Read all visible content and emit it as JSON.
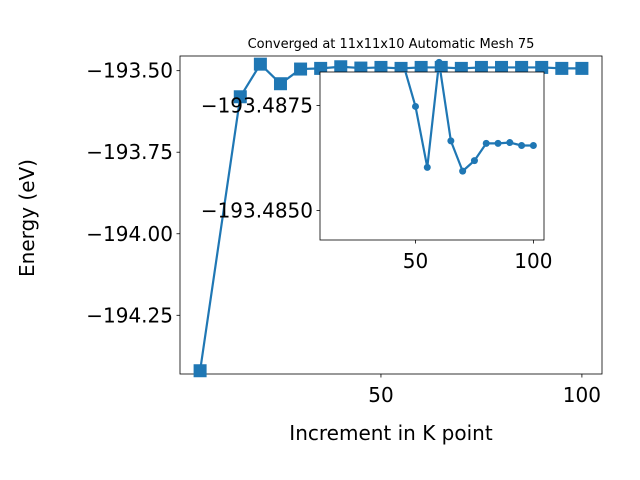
{
  "chart_data": [
    {
      "type": "line",
      "title": "Converged at 11x11x10 Automatic Mesh 75",
      "xlabel": "Increment in K point",
      "ylabel": "Energy (eV)",
      "xlim": [
        0,
        105
      ],
      "ylim": [
        -194.43,
        -193.455
      ],
      "xticks": [
        50,
        100
      ],
      "yticks": [
        -194.25,
        -194.0,
        -193.75,
        -193.5
      ],
      "ytick_labels": [
        "−194.25",
        "−194.00",
        "−193.75",
        "−193.50"
      ],
      "grid": false,
      "marker": "square",
      "color": "#1f77b4",
      "x": [
        5,
        15,
        20,
        25,
        30,
        35,
        40,
        45,
        50,
        55,
        60,
        65,
        70,
        75,
        80,
        85,
        90,
        95,
        100
      ],
      "y": [
        -194.42,
        -193.58,
        -193.48,
        -193.54,
        -193.495,
        -193.493,
        -193.488,
        -193.492,
        -193.49,
        -193.493,
        -193.49,
        -193.49,
        -193.493,
        -193.49,
        -193.49,
        -193.49,
        -193.49,
        -193.493,
        -193.493
      ]
    },
    {
      "type": "line",
      "title": "",
      "xlabel": "",
      "ylabel": "",
      "xlim": [
        9.5,
        104.5
      ],
      "ylim": [
        -193.4843,
        -193.4883
      ],
      "xticks": [
        50,
        100
      ],
      "yticks": [
        -193.4875,
        -193.485
      ],
      "ytick_labels": [
        "−193.4875",
        "−193.4850"
      ],
      "grid": false,
      "marker": "circle",
      "color": "#1f77b4",
      "x": [
        45,
        50,
        55,
        60,
        65,
        70,
        75,
        80,
        85,
        90,
        95,
        100
      ],
      "y": [
        -193.48845,
        -193.48748,
        -193.48603,
        -193.48853,
        -193.48666,
        -193.48594,
        -193.48619,
        -193.4866,
        -193.4866,
        -193.48662,
        -193.48655,
        -193.48655
      ]
    }
  ]
}
